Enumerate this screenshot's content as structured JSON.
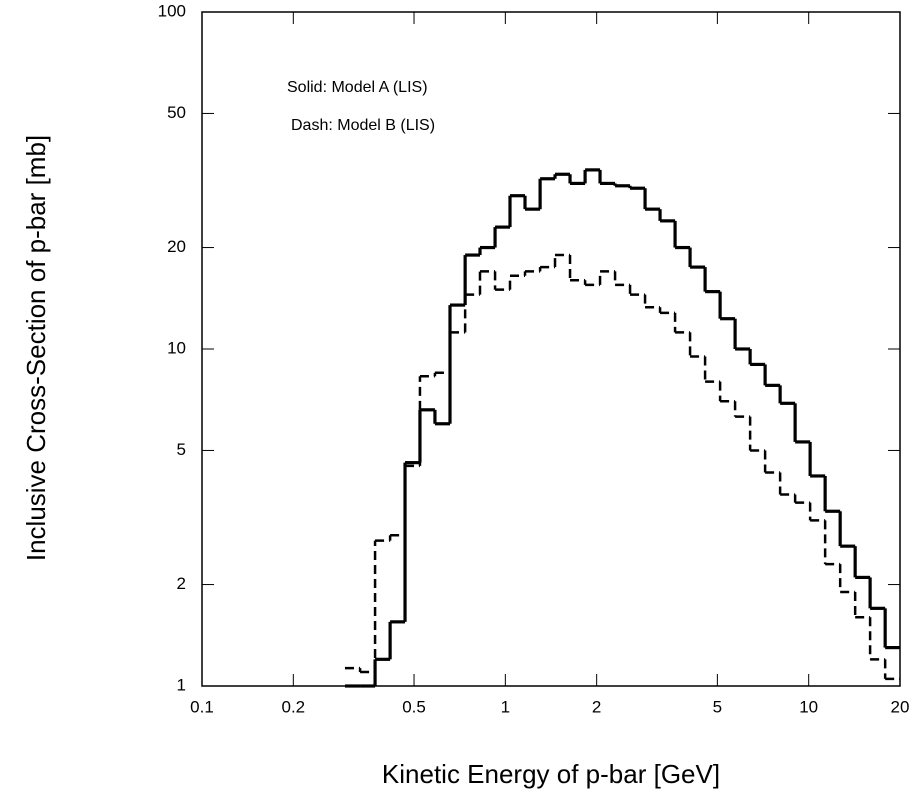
{
  "chart_data": {
    "type": "histogram",
    "xlabel": "Kinetic Energy of p-bar [GeV]",
    "ylabel": "Inclusive Cross-Section of p-bar [mb]",
    "annotations": [
      "Solid: Model A (LIS)",
      "Dash: Model B (LIS)"
    ],
    "xscale": "log",
    "yscale": "log",
    "xlim": [
      0.1,
      20
    ],
    "ylim": [
      1,
      100
    ],
    "xticks": [
      0.1,
      0.2,
      0.5,
      1,
      2,
      5,
      10,
      20
    ],
    "yticks": [
      1,
      2,
      5,
      10,
      20,
      50,
      100
    ],
    "bins": [
      0.296,
      0.332,
      0.372,
      0.417,
      0.467,
      0.523,
      0.586,
      0.657,
      0.737,
      0.825,
      0.925,
      1.036,
      1.161,
      1.302,
      1.458,
      1.634,
      1.832,
      2.052,
      2.3,
      2.577,
      2.888,
      3.236,
      3.627,
      4.064,
      4.555,
      5.105,
      5.72,
      6.411,
      7.184,
      8.051,
      9.022,
      10.11,
      11.33,
      12.7,
      14.23,
      15.94,
      17.87,
      20
    ],
    "series": [
      {
        "color": "#000000",
        "linestyle": "solid",
        "values": [
          1,
          1,
          1.2,
          1.55,
          4.6,
          6.6,
          6.0,
          13.5,
          19,
          20,
          23,
          28.5,
          26,
          32,
          33,
          31,
          34,
          31,
          30.5,
          30,
          26,
          24,
          20,
          17.5,
          14.8,
          12.3,
          10,
          9,
          7.8,
          6.9,
          5.3,
          4.2,
          3.3,
          2.6,
          2.1,
          1.7,
          1.3
        ]
      },
      {
        "color": "#000000",
        "linestyle": "dashed",
        "values": [
          1.13,
          1.1,
          2.7,
          2.8,
          4.5,
          8.3,
          8.5,
          11.2,
          14.5,
          17,
          15,
          16.5,
          17,
          17.5,
          19,
          16,
          15.5,
          17,
          15.5,
          14.5,
          13.3,
          12.8,
          11.2,
          9.5,
          8,
          7,
          6.3,
          5,
          4.3,
          3.7,
          3.5,
          3.1,
          2.3,
          1.9,
          1.6,
          1.2,
          1.05
        ]
      }
    ]
  }
}
